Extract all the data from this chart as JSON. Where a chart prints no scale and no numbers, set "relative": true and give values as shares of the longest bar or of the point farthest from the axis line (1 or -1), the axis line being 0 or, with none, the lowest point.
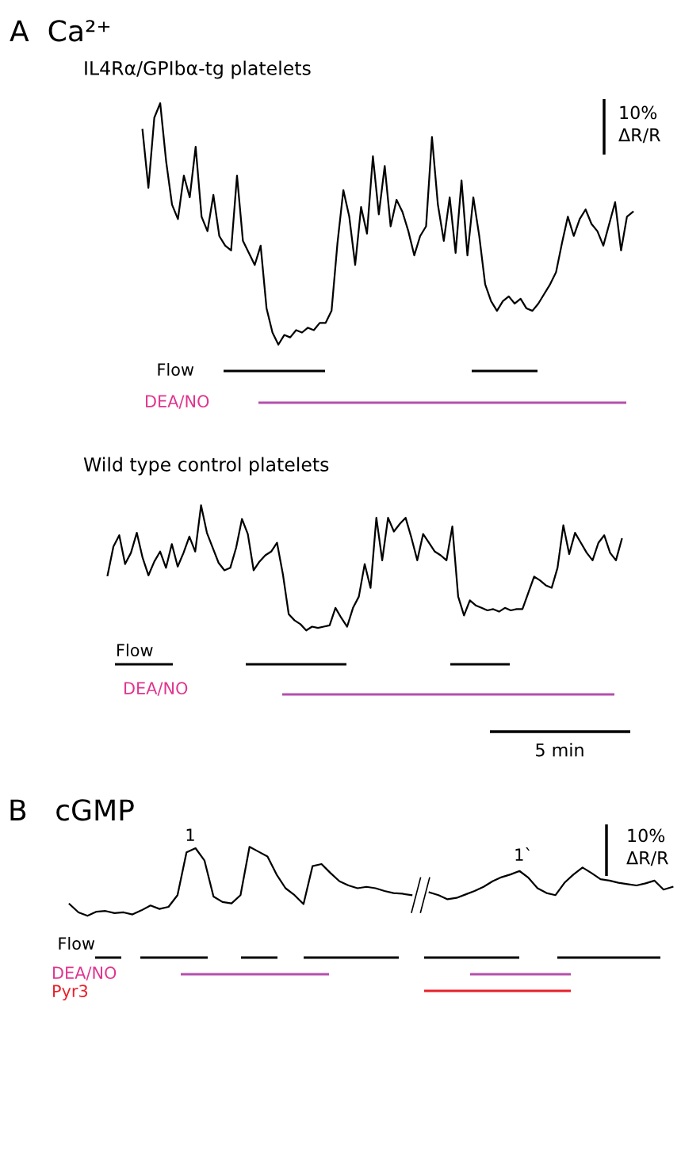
{
  "chart_data": [
    {
      "type": "line",
      "title": "A  Ca²⁺",
      "subtitle": "IL4Rα/GPIbα-tg platelets",
      "relative": true,
      "categories": [
        null,
        null,
        null,
        null,
        null,
        null,
        null,
        null,
        null,
        null,
        null,
        null,
        null,
        null,
        null,
        null,
        null,
        null,
        null,
        null,
        null,
        null,
        null,
        null,
        null,
        null,
        null,
        null,
        null,
        null,
        null,
        null,
        null,
        null,
        null,
        null,
        null,
        null,
        null,
        null,
        null,
        null,
        null,
        null,
        null,
        null,
        null,
        null,
        null,
        null,
        null,
        null,
        null,
        null,
        null,
        null,
        null,
        null,
        null,
        null,
        null,
        null,
        null,
        null,
        null,
        null,
        null,
        null,
        null,
        null,
        null,
        null,
        null,
        null,
        null,
        null,
        null,
        null,
        null,
        null,
        null,
        null,
        null,
        null
      ],
      "series": [
        {
          "color": "#000000",
          "values": [
            0.89,
            0.65,
            0.94,
            1.0,
            0.76,
            0.58,
            0.52,
            0.7,
            0.61,
            0.82,
            0.53,
            0.47,
            0.62,
            0.45,
            0.41,
            0.39,
            0.7,
            0.43,
            0.38,
            0.33,
            0.41,
            0.15,
            0.05,
            0.0,
            0.04,
            0.03,
            0.06,
            0.05,
            0.07,
            0.06,
            0.09,
            0.09,
            0.14,
            0.42,
            0.64,
            0.53,
            0.33,
            0.57,
            0.46,
            0.78,
            0.54,
            0.74,
            0.49,
            0.6,
            0.55,
            0.47,
            0.37,
            0.45,
            0.49,
            0.86,
            0.58,
            0.43,
            0.61,
            0.38,
            0.68,
            0.37,
            0.61,
            0.45,
            0.25,
            0.18,
            0.14,
            0.18,
            0.2,
            0.17,
            0.19,
            0.15,
            0.14,
            0.17,
            0.21,
            0.25,
            0.3,
            0.42,
            0.53,
            0.45,
            0.52,
            0.56,
            0.5,
            0.47,
            0.41,
            0.5,
            0.59,
            0.39,
            0.53,
            0.55
          ]
        }
      ],
      "annotations": [
        "Flow",
        "DEA/NO",
        "10%\nΔR/R"
      ]
    },
    {
      "type": "line",
      "title": "Wild type control platelets",
      "relative": true,
      "categories": [
        null,
        null,
        null,
        null,
        null,
        null,
        null,
        null,
        null,
        null,
        null,
        null,
        null,
        null,
        null,
        null,
        null,
        null,
        null,
        null,
        null,
        null,
        null,
        null,
        null,
        null,
        null,
        null,
        null,
        null,
        null,
        null,
        null,
        null,
        null,
        null,
        null,
        null,
        null,
        null,
        null,
        null,
        null,
        null,
        null,
        null,
        null,
        null,
        null,
        null,
        null,
        null,
        null,
        null,
        null,
        null,
        null,
        null,
        null,
        null,
        null,
        null,
        null,
        null,
        null,
        null,
        null,
        null,
        null,
        null,
        null,
        null,
        null,
        null,
        null,
        null,
        null,
        null,
        null,
        null,
        null,
        null,
        null,
        null,
        null,
        null,
        null,
        null,
        null
      ],
      "series": [
        {
          "color": "#000000",
          "values": [
            0.44,
            0.67,
            0.76,
            0.53,
            0.62,
            0.78,
            0.58,
            0.44,
            0.55,
            0.63,
            0.5,
            0.69,
            0.51,
            0.62,
            0.75,
            0.63,
            1.0,
            0.78,
            0.66,
            0.54,
            0.48,
            0.5,
            0.66,
            0.89,
            0.77,
            0.48,
            0.55,
            0.6,
            0.63,
            0.7,
            0.45,
            0.13,
            0.08,
            0.05,
            0.0,
            0.03,
            0.02,
            0.03,
            0.04,
            0.18,
            0.1,
            0.03,
            0.18,
            0.27,
            0.53,
            0.34,
            0.9,
            0.56,
            0.9,
            0.79,
            0.85,
            0.9,
            0.74,
            0.56,
            0.77,
            0.7,
            0.63,
            0.6,
            0.56,
            0.83,
            0.27,
            0.12,
            0.24,
            0.2,
            0.18,
            0.16,
            0.17,
            0.15,
            0.18,
            0.16,
            0.17,
            0.17,
            0.3,
            0.43,
            0.4,
            0.36,
            0.34,
            0.5,
            0.84,
            0.61,
            0.78,
            0.7,
            0.62,
            0.56,
            0.7,
            0.76,
            0.62,
            0.56,
            0.73
          ]
        }
      ],
      "annotations": [
        "Flow",
        "DEA/NO",
        "5 min"
      ]
    },
    {
      "type": "line",
      "title": "B   cGMP",
      "relative": true,
      "categories": [
        null,
        null,
        null,
        null,
        null,
        null,
        null,
        null,
        null,
        null,
        null,
        null,
        null,
        null,
        null,
        null,
        null,
        null,
        null,
        null,
        null,
        null,
        null,
        null,
        null,
        null,
        null,
        null,
        null,
        null,
        null,
        null,
        null,
        null,
        null,
        null,
        null,
        null,
        null,
        null,
        null,
        null,
        null,
        null,
        null,
        null,
        null,
        null,
        null,
        null,
        null,
        null,
        null,
        null,
        null,
        null,
        null,
        null,
        null,
        null,
        null,
        null,
        null,
        null,
        null,
        null,
        null,
        null
      ],
      "series": [
        {
          "color": "#000000",
          "values": [
            0.17,
            0.05,
            0.0,
            0.06,
            0.07,
            0.04,
            0.05,
            0.02,
            0.08,
            0.15,
            0.1,
            0.13,
            0.3,
            0.92,
            0.98,
            0.8,
            0.28,
            0.2,
            0.18,
            0.3,
            1.0,
            0.93,
            0.86,
            0.6,
            0.4,
            0.3,
            0.17,
            0.72,
            0.75,
            0.62,
            0.5,
            0.44,
            0.4,
            0.42,
            0.4,
            0.36,
            0.33,
            0.32,
            0.3,
            null,
            null,
            null,
            null,
            null,
            null,
            null,
            null,
            null,
            null,
            null,
            null,
            null,
            null,
            null,
            null,
            null,
            null,
            null,
            null,
            null,
            null,
            null,
            null,
            null,
            null,
            null,
            null,
            null
          ]
        },
        {
          "color": "#000000",
          "values": [
            null,
            null,
            null,
            null,
            null,
            null,
            null,
            null,
            null,
            null,
            null,
            null,
            null,
            null,
            null,
            null,
            null,
            null,
            null,
            null,
            null,
            null,
            null,
            null,
            null,
            null,
            null,
            null,
            null,
            null,
            null,
            null,
            null,
            null,
            null,
            null,
            null,
            null,
            null,
            null,
            0.34,
            0.3,
            0.24,
            0.26,
            0.31,
            0.36,
            0.42,
            0.5,
            0.56,
            0.6,
            0.65,
            0.55,
            0.4,
            0.33,
            0.3,
            0.48,
            0.6,
            0.7,
            0.62,
            0.53,
            0.51,
            0.48,
            0.46,
            0.44,
            0.47,
            0.51,
            0.38,
            0.42
          ]
        }
      ],
      "annotations": [
        "Flow",
        "DEA/NO",
        "Pyr3",
        "1",
        "1`",
        "10%\nΔR/R"
      ]
    }
  ]
}
